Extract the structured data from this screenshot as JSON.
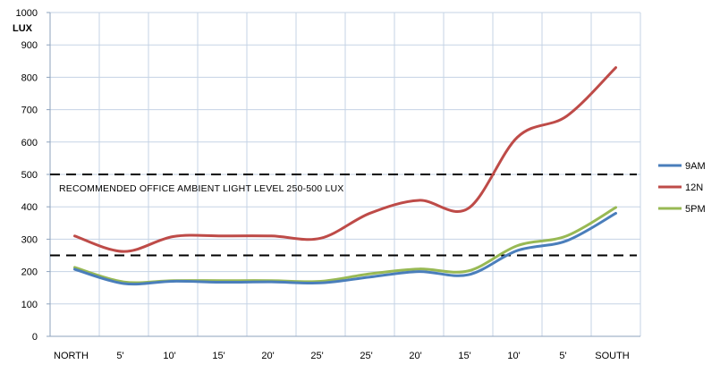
{
  "chart_data": {
    "type": "line",
    "title": "",
    "xlabel": "",
    "ylabel": "",
    "unit_label": "LUX",
    "categories": [
      "NORTH",
      "5'",
      "10'",
      "15'",
      "20'",
      "25'",
      "25'",
      "20'",
      "15'",
      "10'",
      "5'",
      "SOUTH"
    ],
    "ylim": [
      0,
      1000
    ],
    "yticks": [
      0,
      100,
      200,
      300,
      400,
      500,
      600,
      700,
      800,
      900,
      1000
    ],
    "grid": "vertical and horizontal",
    "legend_position": "right",
    "series": [
      {
        "name": "9AM",
        "color": "#4a7ebb",
        "values": [
          207,
          163,
          170,
          167,
          168,
          165,
          183,
          200,
          190,
          265,
          295,
          380
        ]
      },
      {
        "name": "12N",
        "color": "#be4b48",
        "values": [
          310,
          262,
          308,
          310,
          310,
          303,
          380,
          420,
          395,
          615,
          680,
          830
        ]
      },
      {
        "name": "5PM",
        "color": "#98b954",
        "values": [
          213,
          168,
          172,
          172,
          172,
          170,
          193,
          208,
          202,
          280,
          310,
          398
        ]
      }
    ],
    "reference_lines": [
      {
        "value": 500,
        "style": "dashed",
        "color": "#000000"
      },
      {
        "value": 250,
        "style": "dashed",
        "color": "#000000"
      }
    ],
    "annotation": "RECOMMENDED  OFFICE  AMBIENT  LIGHT LEVEL 250-500 LUX"
  }
}
